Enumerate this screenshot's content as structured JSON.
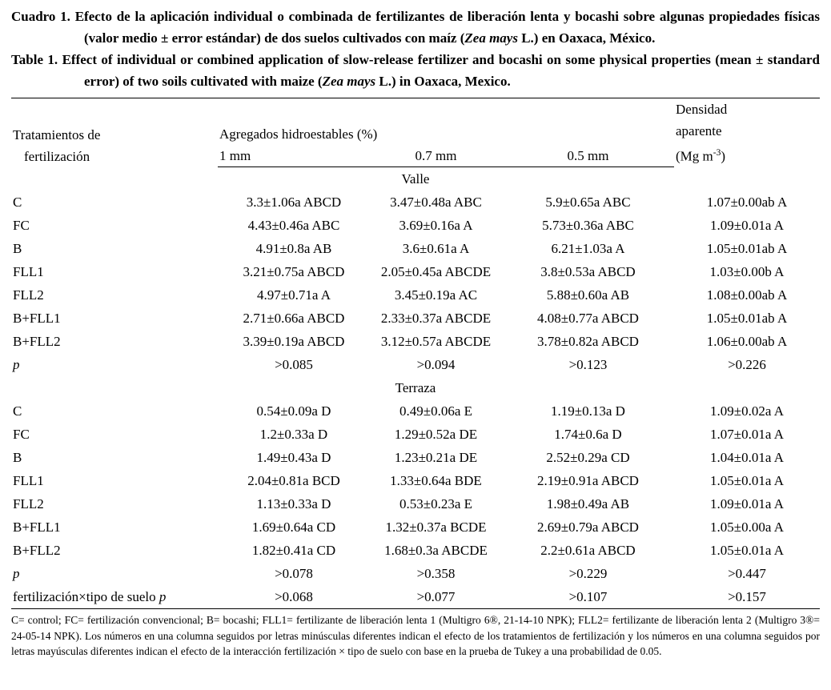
{
  "titles": {
    "es": [
      {
        "text": "Cuadro 1. Efecto de la aplicación individual o combinada de fertilizantes de liberación lenta y bocashi sobre algunas propiedades físicas (valor medio ± error estándar) de dos suelos cultivados con maíz ("
      },
      {
        "text": "Zea mays",
        "italic": true
      },
      {
        "text": " L.) en Oaxaca, México."
      }
    ],
    "en": [
      {
        "text": "Table 1. Effect of individual or combined application of slow-release fertilizer and bocashi on some physical properties (mean ± standard error) of two soils cultivated with maize ("
      },
      {
        "text": "Zea mays",
        "italic": true
      },
      {
        "text": " L.) in Oaxaca, Mexico."
      }
    ]
  },
  "table": {
    "header": {
      "treatments_line1": "Tratamientos de",
      "treatments_line2": "fertilización",
      "aggregates_group": "Agregados hidroestables (%)",
      "sizes": [
        "1 mm",
        "0.7 mm",
        "0.5 mm"
      ],
      "density_line1": "Densidad",
      "density_line2": "aparente",
      "density_line3": [
        {
          "text": "(Mg m"
        },
        {
          "text": "-3",
          "sup": true
        },
        {
          "text": ")"
        }
      ]
    },
    "sections": [
      {
        "name": "Valle",
        "rows": [
          {
            "label": [
              {
                "text": "C"
              }
            ],
            "values": [
              "3.3±1.06a ABCD",
              "3.47±0.48a ABC",
              "5.9±0.65a ABC",
              "1.07±0.00ab A"
            ]
          },
          {
            "label": [
              {
                "text": "FC"
              }
            ],
            "values": [
              "4.43±0.46a ABC",
              "3.69±0.16a A",
              "5.73±0.36a ABC",
              "1.09±0.01a A"
            ]
          },
          {
            "label": [
              {
                "text": "B"
              }
            ],
            "values": [
              "4.91±0.8a AB",
              "3.6±0.61a A",
              "6.21±1.03a A",
              "1.05±0.01ab A"
            ]
          },
          {
            "label": [
              {
                "text": "FLL1"
              }
            ],
            "values": [
              "3.21±0.75a ABCD",
              "2.05±0.45a ABCDE",
              "3.8±0.53a ABCD",
              "1.03±0.00b A"
            ]
          },
          {
            "label": [
              {
                "text": "FLL2"
              }
            ],
            "values": [
              "4.97±0.71a A",
              "3.45±0.19a AC",
              "5.88±0.60a AB",
              "1.08±0.00ab A"
            ]
          },
          {
            "label": [
              {
                "text": "B+FLL1"
              }
            ],
            "values": [
              "2.71±0.66a ABCD",
              "2.33±0.37a ABCDE",
              "4.08±0.77a ABCD",
              "1.05±0.01ab A"
            ]
          },
          {
            "label": [
              {
                "text": "B+FLL2"
              }
            ],
            "values": [
              "3.39±0.19a ABCD",
              "3.12±0.57a ABCDE",
              "3.78±0.82a ABCD",
              "1.06±0.00ab A"
            ]
          },
          {
            "label": [
              {
                "text": "p",
                "italic": true
              }
            ],
            "values": [
              ">0.085",
              ">0.094",
              ">0.123",
              ">0.226"
            ]
          }
        ]
      },
      {
        "name": "Terraza",
        "rows": [
          {
            "label": [
              {
                "text": "C"
              }
            ],
            "values": [
              "0.54±0.09a D",
              "0.49±0.06a E",
              "1.19±0.13a D",
              "1.09±0.02a A"
            ]
          },
          {
            "label": [
              {
                "text": "FC"
              }
            ],
            "values": [
              "1.2±0.33a D",
              "1.29±0.52a DE",
              "1.74±0.6a D",
              "1.07±0.01a A"
            ]
          },
          {
            "label": [
              {
                "text": "B"
              }
            ],
            "values": [
              "1.49±0.43a D",
              "1.23±0.21a DE",
              "2.52±0.29a CD",
              "1.04±0.01a A"
            ]
          },
          {
            "label": [
              {
                "text": "FLL1"
              }
            ],
            "values": [
              "2.04±0.81a BCD",
              "1.33±0.64a BDE",
              "2.19±0.91a ABCD",
              "1.05±0.01a A"
            ]
          },
          {
            "label": [
              {
                "text": "FLL2"
              }
            ],
            "values": [
              "1.13±0.33a D",
              "0.53±0.23a E",
              "1.98±0.49a AB",
              "1.09±0.01a A"
            ]
          },
          {
            "label": [
              {
                "text": "B+FLL1"
              }
            ],
            "values": [
              "1.69±0.64a CD",
              "1.32±0.37a BCDE",
              "2.69±0.79a ABCD",
              "1.05±0.00a A"
            ]
          },
          {
            "label": [
              {
                "text": "B+FLL2"
              }
            ],
            "values": [
              "1.82±0.41a CD",
              "1.68±0.3a ABCDE",
              "2.2±0.61a ABCD",
              "1.05±0.01a A"
            ]
          },
          {
            "label": [
              {
                "text": "p",
                "italic": true
              }
            ],
            "values": [
              ">0.078",
              ">0.358",
              ">0.229",
              ">0.447"
            ]
          }
        ]
      }
    ],
    "interaction_row": {
      "label": [
        {
          "text": "fertilización×tipo de suelo "
        },
        {
          "text": "p",
          "italic": true
        }
      ],
      "values": [
        ">0.068",
        ">0.077",
        ">0.107",
        ">0.157"
      ]
    }
  },
  "footnote": "C= control; FC= fertilización convencional; B= bocashi; FLL1= fertilizante de liberación lenta 1 (Multigro 6®, 21-14-10 NPK); FLL2= fertilizante de liberación lenta 2 (Multigro 3®= 24-05-14 NPK). Los números en una columna seguidos por letras minúsculas diferentes indican el efecto de los tratamientos de fertilización y los números en una columna seguidos por letras mayúsculas diferentes indican el efecto de la interacción fertilización × tipo de suelo con base en la prueba de Tukey a una probabilidad de 0.05."
}
